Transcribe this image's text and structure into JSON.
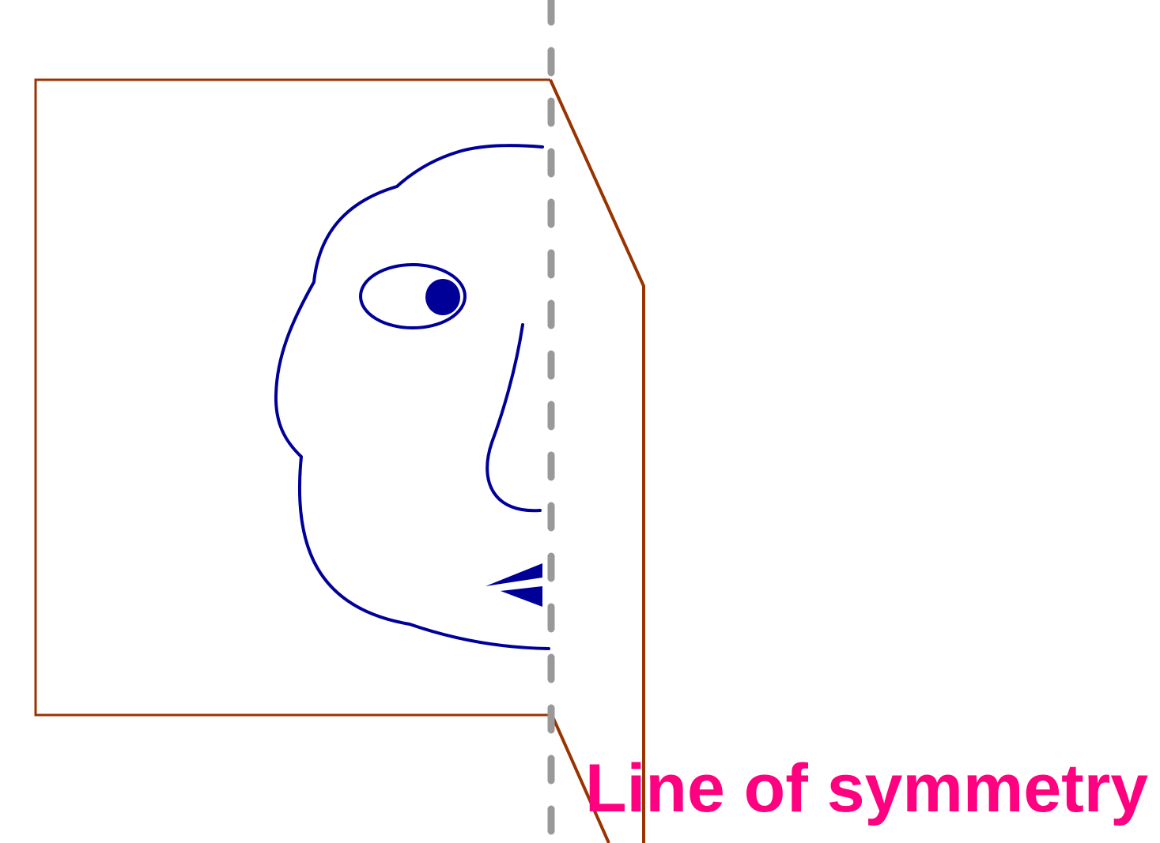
{
  "diagram": {
    "label": "Line of symmetry",
    "colors": {
      "paper_outline": "#993300",
      "face": "#000099",
      "symmetry_line": "#999999",
      "label": "#ff0080"
    }
  }
}
